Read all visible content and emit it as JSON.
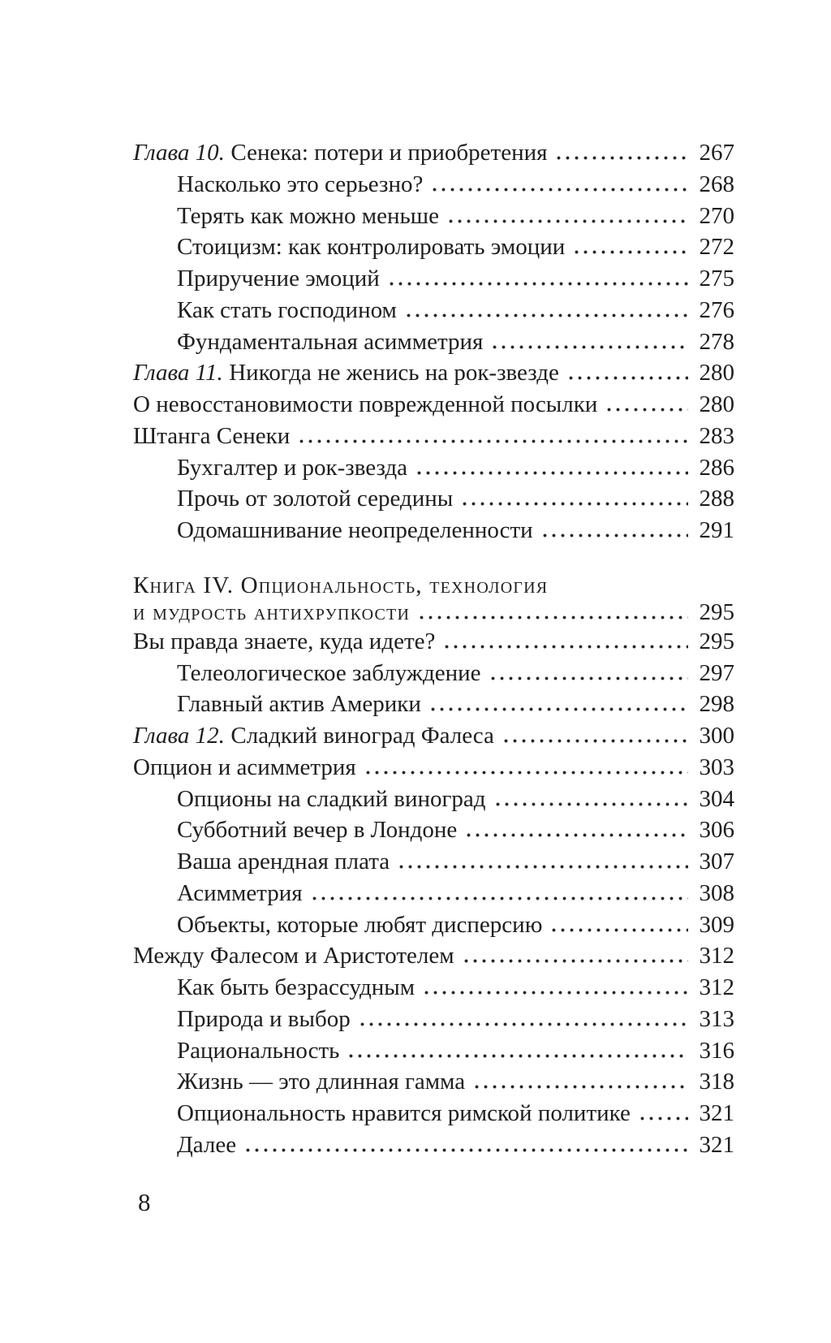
{
  "colors": {
    "background": "#ffffff",
    "text": "#1e1e1e",
    "dots": "#242424"
  },
  "footer": {
    "folio": "8"
  },
  "toc": {
    "entries": [
      {
        "prefix": "Глава 10.",
        "title": "Сенека: потери и приобретения",
        "page": "267",
        "indent": 0,
        "style": "chapter"
      },
      {
        "title": "Насколько это серьезно?",
        "page": "268",
        "indent": 1,
        "style": "sub"
      },
      {
        "title": "Терять как можно меньше",
        "page": "270",
        "indent": 1,
        "style": "sub"
      },
      {
        "title": "Стоицизм: как контролировать эмоции",
        "page": "272",
        "indent": 1,
        "style": "sub"
      },
      {
        "title": "Приручение эмоций",
        "page": "275",
        "indent": 1,
        "style": "sub"
      },
      {
        "title": "Как стать господином",
        "page": "276",
        "indent": 1,
        "style": "sub"
      },
      {
        "title": "Фундаментальная асимметрия",
        "page": "278",
        "indent": 1,
        "style": "sub"
      },
      {
        "prefix": "Глава 11.",
        "title": "Никогда не женись на рок-звезде",
        "page": "280",
        "indent": 0,
        "style": "chapter"
      },
      {
        "title": "О невосстановимости поврежденной посылки",
        "page": "280",
        "indent": 0,
        "style": "section"
      },
      {
        "title": "Штанга Сенеки",
        "page": "283",
        "indent": 0,
        "style": "section"
      },
      {
        "title": "Бухгалтер и рок-звезда",
        "page": "286",
        "indent": 1,
        "style": "sub"
      },
      {
        "title": "Прочь от золотой середины",
        "page": "288",
        "indent": 1,
        "style": "sub"
      },
      {
        "title": "Одомашнивание неопределенности",
        "page": "291",
        "indent": 1,
        "style": "sub"
      },
      {
        "title": "Книга IV. Опциональность, технология",
        "page": null,
        "indent": 0,
        "style": "book",
        "group_start": true
      },
      {
        "title": "и мудрость антихрупкости",
        "page": "295",
        "indent": 0,
        "style": "book"
      },
      {
        "title": "Вы правда знаете, куда идете?",
        "page": "295",
        "indent": 0,
        "style": "section"
      },
      {
        "title": "Телеологическое заблуждение",
        "page": "297",
        "indent": 1,
        "style": "sub"
      },
      {
        "title": "Главный актив Америки",
        "page": "298",
        "indent": 1,
        "style": "sub"
      },
      {
        "prefix": "Глава 12.",
        "title": "Сладкий виноград Фалеса",
        "page": "300",
        "indent": 0,
        "style": "chapter"
      },
      {
        "title": "Опцион и асимметрия",
        "page": "303",
        "indent": 0,
        "style": "section"
      },
      {
        "title": "Опционы на сладкий виноград",
        "page": "304",
        "indent": 1,
        "style": "sub"
      },
      {
        "title": "Субботний вечер в Лондоне",
        "page": "306",
        "indent": 1,
        "style": "sub"
      },
      {
        "title": "Ваша арендная плата",
        "page": "307",
        "indent": 1,
        "style": "sub"
      },
      {
        "title": "Асимметрия",
        "page": "308",
        "indent": 1,
        "style": "sub"
      },
      {
        "title": "Объекты, которые любят дисперсию",
        "page": "309",
        "indent": 1,
        "style": "sub"
      },
      {
        "title": "Между Фалесом и Аристотелем",
        "page": "312",
        "indent": 0,
        "style": "section"
      },
      {
        "title": "Как быть безрассудным",
        "page": "312",
        "indent": 1,
        "style": "sub"
      },
      {
        "title": "Природа и выбор",
        "page": "313",
        "indent": 1,
        "style": "sub"
      },
      {
        "title": "Рациональность",
        "page": "316",
        "indent": 1,
        "style": "sub"
      },
      {
        "title": "Жизнь — это длинная гамма",
        "page": "318",
        "indent": 1,
        "style": "sub"
      },
      {
        "title": "Опциональность нравится римской политике",
        "page": "321",
        "indent": 1,
        "style": "sub"
      },
      {
        "title": "Далее",
        "page": "321",
        "indent": 1,
        "style": "sub"
      }
    ]
  }
}
